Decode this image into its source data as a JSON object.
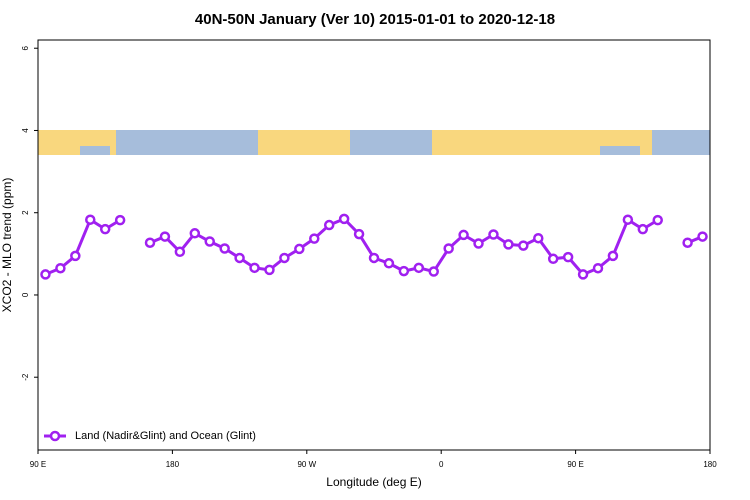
{
  "chart_data": {
    "type": "line",
    "title": "40N-50N January (Ver 10)   2015-01-01 to 2020-12-18",
    "x_label": "Longitude (deg E)",
    "y_label": "XCO2 - MLO trend (ppm)",
    "x": [
      95,
      105,
      115,
      125,
      135,
      145,
      155,
      165,
      175,
      185,
      195,
      205,
      215,
      225,
      235,
      245,
      255,
      265,
      275,
      285,
      295,
      305,
      315,
      325,
      335,
      345,
      355,
      365,
      375,
      385,
      395,
      405,
      415,
      425,
      435,
      445,
      455,
      465,
      475,
      485,
      495,
      505,
      515,
      525,
      535
    ],
    "series": [
      {
        "name": "Land (Nadir&Glint) and Ocean (Glint)",
        "color": "#a020f0",
        "values": [
          0.5,
          0.65,
          0.95,
          1.83,
          1.6,
          1.82,
          null,
          1.27,
          1.42,
          1.05,
          1.5,
          1.3,
          1.13,
          0.9,
          0.66,
          0.61,
          0.9,
          1.12,
          1.37,
          1.7,
          1.85,
          1.48,
          0.9,
          0.77,
          0.58,
          0.66,
          0.57,
          1.13,
          1.46,
          1.25,
          1.47,
          1.23,
          1.2,
          1.38,
          0.88,
          0.92,
          0.5,
          0.65,
          0.95,
          1.83,
          1.6,
          1.82,
          null,
          1.27,
          1.42
        ]
      }
    ],
    "xlim": [
      90,
      540
    ],
    "xticks": [
      {
        "value": 90,
        "label": "90 E"
      },
      180,
      {
        "value": 270,
        "label": "90 W"
      },
      {
        "value": 360,
        "label": "0"
      },
      {
        "value": 450,
        "label": "90 E"
      },
      {
        "value": 540,
        "label": "180"
      }
    ],
    "ylim": [
      -3.77,
      6.2
    ],
    "yticks": [
      -2,
      0,
      2,
      4,
      6
    ],
    "legend": "bottom-left"
  }
}
